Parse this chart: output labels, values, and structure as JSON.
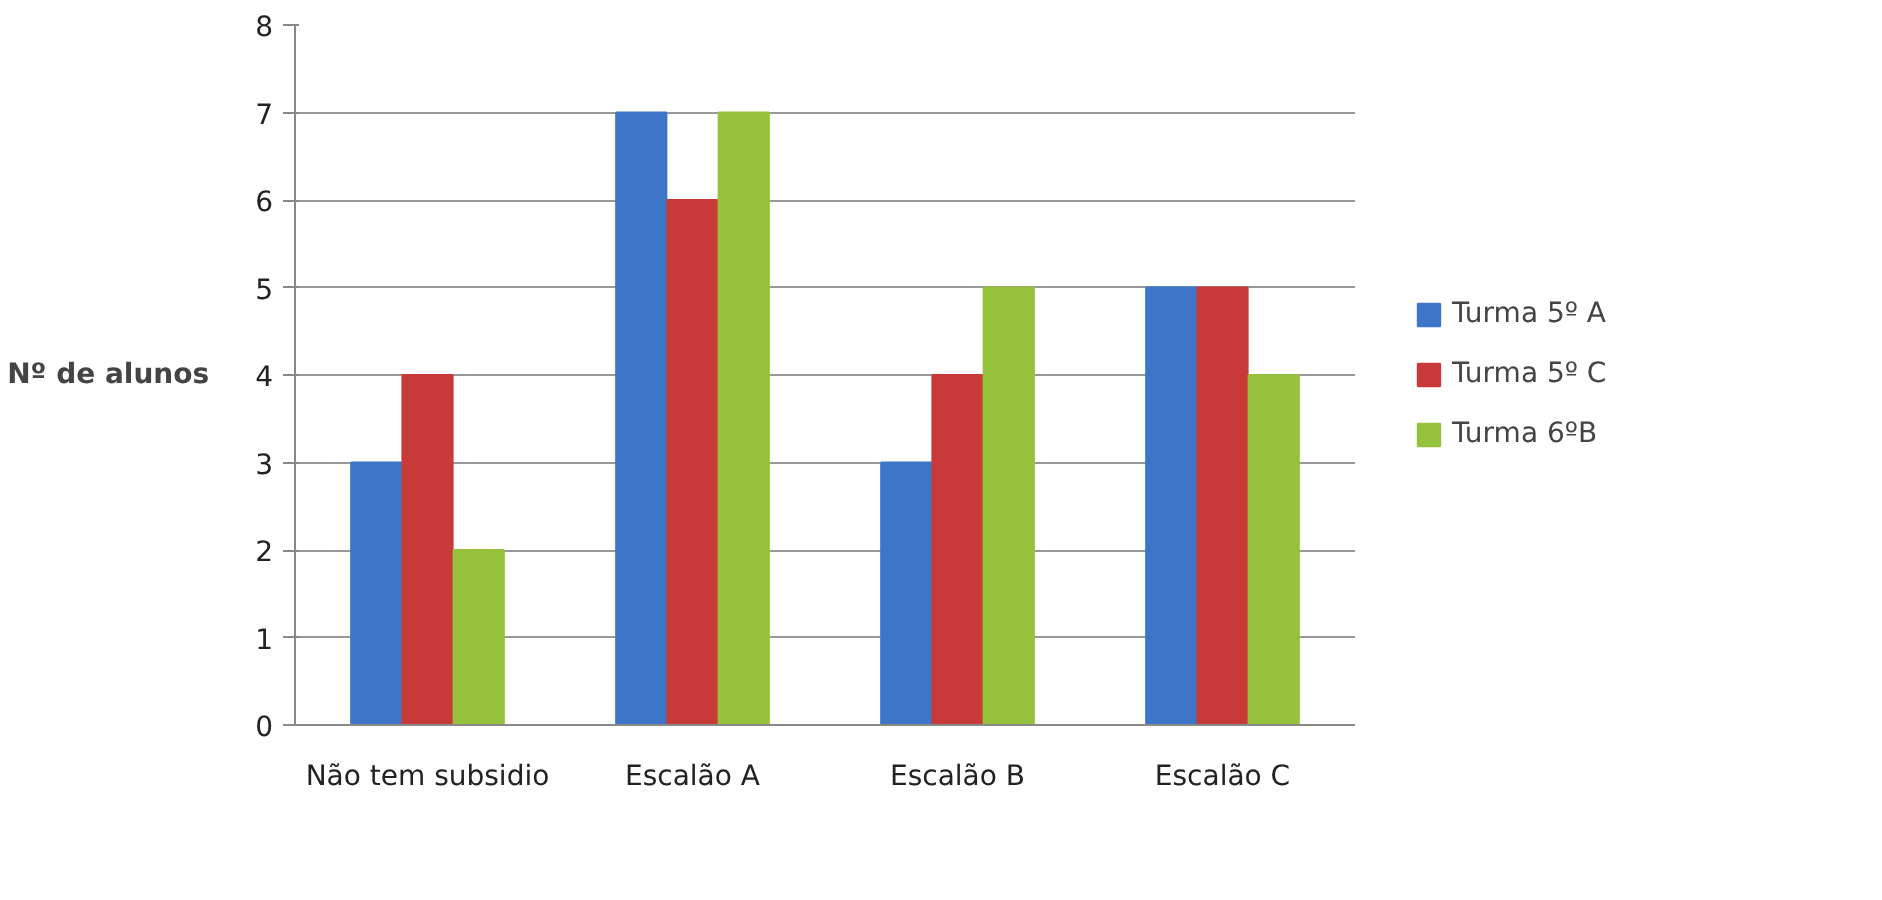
{
  "chart_data": {
    "type": "bar",
    "ylabel": "Nº de alunos",
    "categories": [
      "Não tem subsidio",
      "Escalão A",
      "Escalão B",
      "Escalão C"
    ],
    "series": [
      {
        "name": "Turma 5º A",
        "color": "#3d75c9",
        "values": [
          3,
          7,
          3,
          5
        ]
      },
      {
        "name": "Turma 5º C",
        "color": "#c83a38",
        "values": [
          4,
          6,
          4,
          5
        ]
      },
      {
        "name": "Turma 6ºB",
        "color": "#96c13c",
        "values": [
          2,
          7,
          5,
          4
        ]
      }
    ],
    "ylim": [
      0,
      8
    ],
    "yticks": [
      0,
      1,
      2,
      3,
      4,
      5,
      6,
      7,
      8
    ],
    "grid": "y",
    "legend": "right"
  }
}
